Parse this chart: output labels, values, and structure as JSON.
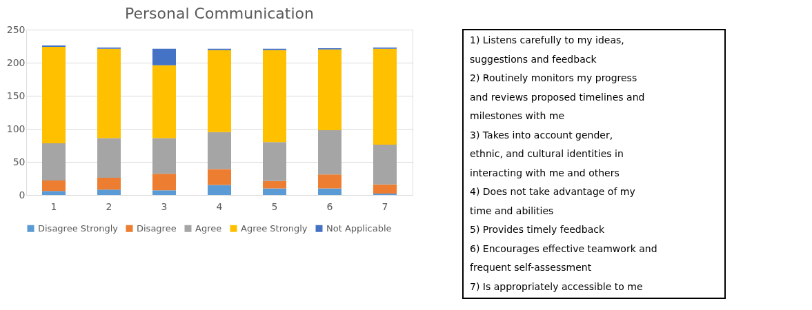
{
  "chart_data": {
    "type": "bar",
    "title": "Personal Communication",
    "stacked": true,
    "categories": [
      "1",
      "2",
      "3",
      "4",
      "5",
      "6",
      "7"
    ],
    "series": [
      {
        "name": "Disagree Strongly",
        "color": "#5b9bd5",
        "values": [
          6,
          8,
          7,
          15,
          10,
          10,
          2
        ]
      },
      {
        "name": "Disagree",
        "color": "#ed7d31",
        "values": [
          16,
          18,
          25,
          24,
          11,
          21,
          14
        ]
      },
      {
        "name": "Agree",
        "color": "#a5a5a5",
        "values": [
          56,
          60,
          54,
          56,
          59,
          67,
          60
        ]
      },
      {
        "name": "Agree Strongly",
        "color": "#ffc000",
        "values": [
          146,
          135,
          110,
          124,
          139,
          122,
          145
        ]
      },
      {
        "name": "Not Applicable",
        "color": "#4472c4",
        "values": [
          2,
          2,
          25,
          2,
          2,
          2,
          2
        ]
      }
    ],
    "ylim": [
      0,
      250
    ],
    "yticks": [
      0,
      50,
      100,
      150,
      200,
      250
    ],
    "grid": "y",
    "legend": "bottom",
    "annotations": [
      "1) Listens carefully to my ideas, suggestions and feedback",
      "2) Routinely monitors my progress and reviews proposed timelines and milestones with me",
      "3) Takes into account gender, ethnic, and cultural identities in interacting with me and others",
      "4) Does not take advantage of my time and abilities",
      "5) Provides timely feedback",
      "6) Encourages effective teamwork and frequent self-assessment",
      "7) Is appropriately accessible to me"
    ]
  }
}
